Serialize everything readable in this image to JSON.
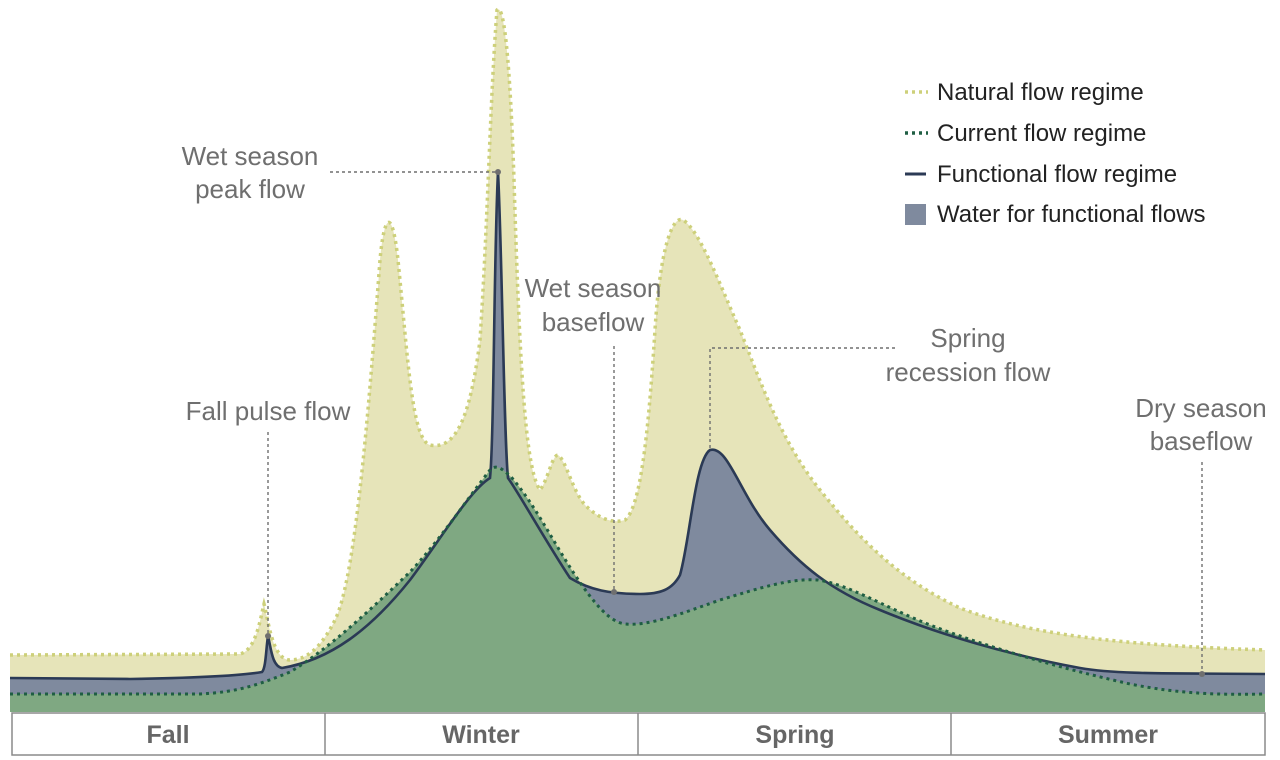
{
  "legend": [
    {
      "label": "Natural flow regime",
      "style": "dotted-line",
      "color": "#cdd07a"
    },
    {
      "label": "Current flow regime",
      "style": "dotted-line",
      "color": "#1f5e43"
    },
    {
      "label": "Functional flow regime",
      "style": "solid-line",
      "color": "#2b3a55"
    },
    {
      "label": "Water for functional flows",
      "style": "swatch",
      "color": "#7f8a9e"
    }
  ],
  "annotations": {
    "wet_peak": [
      "Wet season",
      "peak flow"
    ],
    "fall_pulse": [
      "Fall pulse flow"
    ],
    "wet_base": [
      "Wet season",
      "baseflow"
    ],
    "spring_recession": [
      "Spring",
      "recession flow"
    ],
    "dry_base": [
      "Dry season",
      "baseflow"
    ]
  },
  "seasons": [
    "Fall",
    "Winter",
    "Spring",
    "Summer"
  ],
  "colors": {
    "natural_fill": "#e6e4b9",
    "natural_line": "#cdd07a",
    "functional_fill": "#7f8a9e",
    "functional_line": "#2b3a55",
    "current_fill": "#7fa882",
    "current_line": "#1f5e43",
    "season_border": "#8a8a8a"
  }
}
